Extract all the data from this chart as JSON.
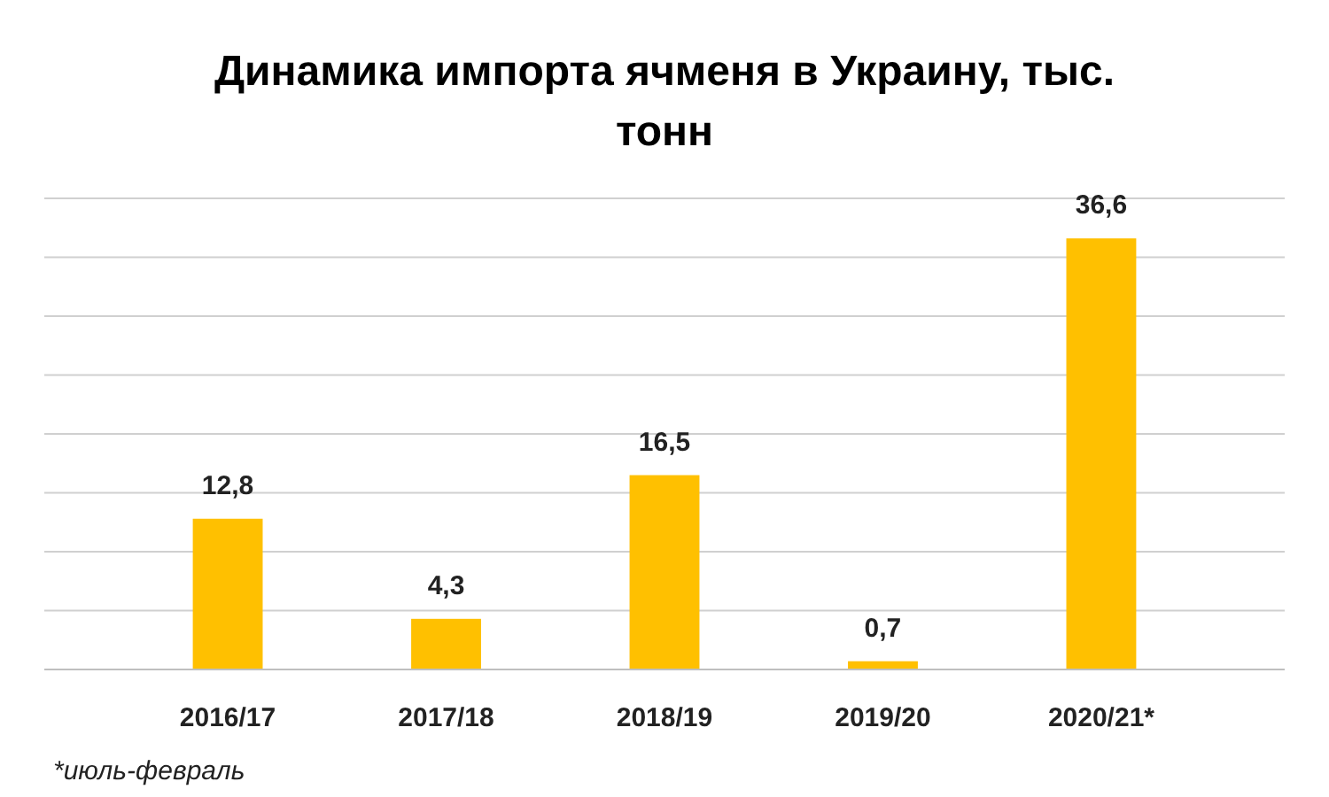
{
  "chart_data": {
    "type": "bar",
    "title": "Динамика импорта ячменя в Украину, тыс. тонн",
    "categories": [
      "2016/17",
      "2017/18",
      "2018/19",
      "2019/20",
      "2020/21*"
    ],
    "values": [
      12.8,
      4.3,
      16.5,
      0.7,
      36.6
    ],
    "color": "#ffc000",
    "value_labels": [
      "12,8",
      "4,3",
      "16,5",
      "0,7",
      "36,6"
    ],
    "ylim": [
      0,
      40
    ],
    "yticks": [
      {
        "value": 0,
        "label": null
      },
      {
        "value": 5,
        "label": null
      },
      {
        "value": 10,
        "label": null
      },
      {
        "value": 15,
        "label": null
      },
      {
        "value": 20,
        "label": null
      },
      {
        "value": 25,
        "label": null
      },
      {
        "value": 30,
        "label": null
      },
      {
        "value": 35,
        "label": null
      },
      {
        "value": 40,
        "label": null
      }
    ],
    "grid": "y",
    "tick_labels": "x",
    "annotations": [
      "*июль-февраль"
    ]
  }
}
